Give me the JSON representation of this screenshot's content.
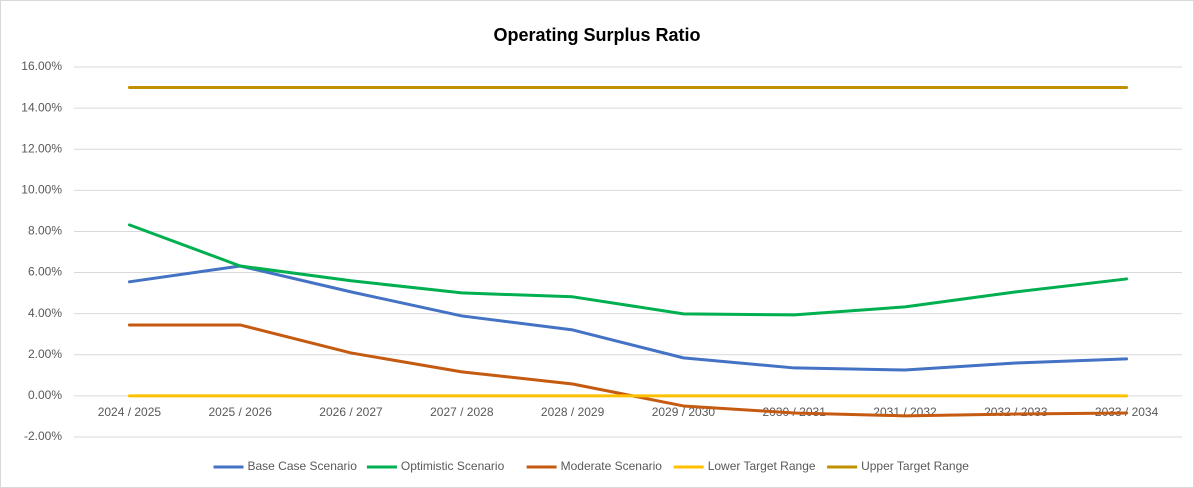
{
  "chart_data": {
    "type": "line",
    "title": "Operating Surplus Ratio",
    "categories": [
      "2024 / 2025",
      "2025 / 2026",
      "2026 / 2027",
      "2027 / 2028",
      "2028 / 2029",
      "2029 / 2030",
      "2030 / 2031",
      "2031 / 2032",
      "2032 / 2033",
      "2033 / 2034"
    ],
    "series": [
      {
        "name": "Base Case Scenario",
        "color": "#4472c4",
        "values": [
          5.55,
          6.32,
          5.06,
          3.89,
          3.21,
          1.85,
          1.36,
          1.26,
          1.6,
          1.8
        ]
      },
      {
        "name": "Optimistic Scenario",
        "color": "#00b050",
        "values": [
          8.32,
          6.32,
          5.6,
          5.01,
          4.82,
          3.99,
          3.94,
          4.33,
          5.06,
          5.69
        ]
      },
      {
        "name": "Moderate Scenario",
        "color": "#c55a11",
        "values": [
          3.45,
          3.45,
          2.09,
          1.17,
          0.58,
          -0.49,
          -0.83,
          -0.97,
          -0.88,
          -0.83
        ]
      },
      {
        "name": "Lower Target Range",
        "color": "#ffc000",
        "values": [
          0,
          0,
          0,
          0,
          0,
          0,
          0,
          0,
          0,
          0
        ]
      },
      {
        "name": "Upper Target Range",
        "color": "#bf9000",
        "values": [
          15,
          15,
          15,
          15,
          15,
          15,
          15,
          15,
          15,
          15
        ]
      }
    ],
    "ylim": [
      -2,
      16
    ],
    "yticks": [
      {
        "value": -2,
        "label": "-2.00%"
      },
      {
        "value": 0,
        "label": "0.00%"
      },
      {
        "value": 2,
        "label": "2.00%"
      },
      {
        "value": 4,
        "label": "4.00%"
      },
      {
        "value": 6,
        "label": "6.00%"
      },
      {
        "value": 8,
        "label": "8.00%"
      },
      {
        "value": 10,
        "label": "10.00%"
      },
      {
        "value": 12,
        "label": "12.00%"
      },
      {
        "value": 14,
        "label": "14.00%"
      },
      {
        "value": 16,
        "label": "16.00%"
      }
    ],
    "grid": true,
    "legend": "bottom"
  }
}
